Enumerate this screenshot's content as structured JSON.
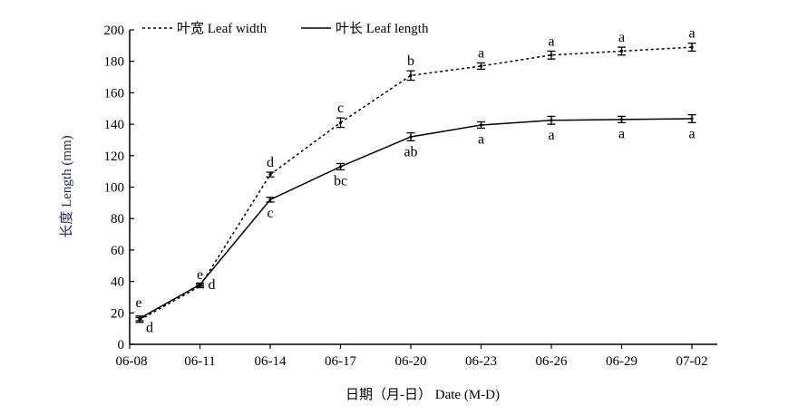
{
  "chart_data": {
    "type": "line",
    "xlabel": "日期（月-日） Date (M-D)",
    "ylabel": "长度 Length (mm)",
    "categories": [
      "06-08",
      "06-11",
      "06-14",
      "06-17",
      "06-20",
      "06-23",
      "06-26",
      "06-29",
      "07-02"
    ],
    "ylim": [
      0,
      200
    ],
    "yticks": [
      0,
      20,
      40,
      60,
      80,
      100,
      120,
      140,
      160,
      180,
      200
    ],
    "grid": false,
    "legend": "top-left",
    "series": [
      {
        "name": "叶宽 Leaf width",
        "line_style": "dotted",
        "values": [
          15.5,
          37,
          108,
          141,
          171,
          177,
          184,
          186.5,
          189
        ],
        "errors": [
          1.5,
          1,
          1.5,
          3,
          3,
          2,
          2.5,
          2.5,
          2.5
        ],
        "letters": [
          "e",
          "e",
          "d",
          "c",
          "b",
          "a",
          "a",
          "a",
          "a"
        ]
      },
      {
        "name": "叶长 Leaf length",
        "line_style": "solid",
        "values": [
          16.5,
          38,
          92,
          113,
          132,
          139.5,
          142.5,
          143,
          143.5
        ],
        "errors": [
          1.5,
          1,
          1.5,
          2,
          2.5,
          2,
          2.5,
          2,
          2.5
        ],
        "letters": [
          "d",
          "d",
          "c",
          "bc",
          "ab",
          "a",
          "a",
          "a",
          "a"
        ]
      }
    ]
  }
}
